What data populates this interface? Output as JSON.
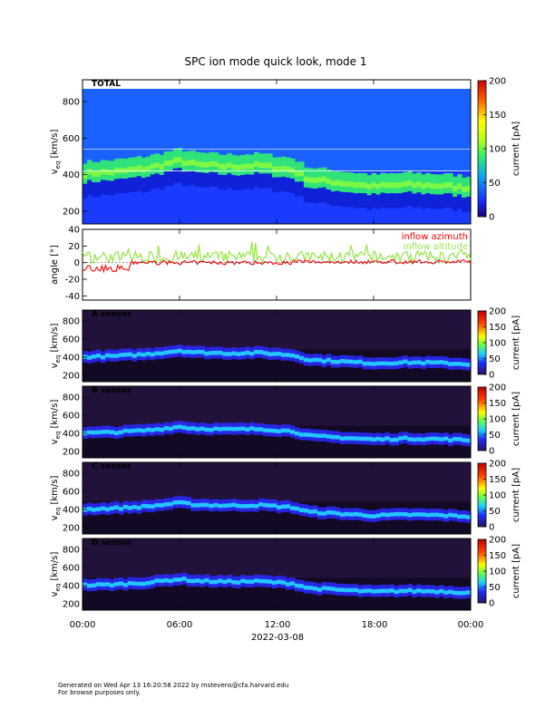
{
  "chart_data": {
    "title": "SPC ion mode quick look, mode 1",
    "date_label": "2022-03-08",
    "x_ticks": [
      "00:00",
      "06:00",
      "12:00",
      "18:00",
      "00:00"
    ],
    "x_range_hours": [
      0,
      24
    ],
    "panels": [
      {
        "type": "heatmap",
        "id": "total",
        "label": "TOTAL",
        "ylabel": "v_eq [km/s]",
        "ylabel_main": "v",
        "ylabel_sub": "eq",
        "ylabel_unit": "[km/s]",
        "ylim": [
          130,
          920
        ],
        "yticks": [
          200,
          400,
          600,
          800
        ],
        "colorbar_label": "current [pA]",
        "colorbar_range": [
          0,
          200
        ],
        "colorbar_ticks": [
          0,
          50,
          100,
          150,
          200
        ],
        "peak_speed_kms": [
          [
            0,
            400
          ],
          [
            2,
            410
          ],
          [
            4,
            430
          ],
          [
            6,
            470
          ],
          [
            7,
            450
          ],
          [
            9,
            440
          ],
          [
            11,
            445
          ],
          [
            13,
            420
          ],
          [
            14,
            370
          ],
          [
            16,
            350
          ],
          [
            18,
            330
          ],
          [
            20,
            340
          ],
          [
            22,
            335
          ],
          [
            24,
            320
          ]
        ]
      },
      {
        "type": "line",
        "id": "angle",
        "ylabel": "angle [°]",
        "ylim": [
          -45,
          40
        ],
        "yticks": [
          -40,
          -20,
          0,
          20,
          40
        ],
        "series": [
          {
            "name": "inflow azimuth",
            "color": "#ff0000"
          },
          {
            "name": "inflow altitude",
            "color": "#99e64d"
          }
        ]
      },
      {
        "type": "heatmap",
        "id": "a",
        "label": "A sensor",
        "ylabel_main": "v",
        "ylabel_sub": "eq",
        "ylabel_unit": "[km/s]",
        "ylim": [
          130,
          920
        ],
        "yticks": [
          200,
          400,
          600,
          800
        ],
        "colorbar_label": "current [pA]",
        "colorbar_range": [
          0,
          200
        ],
        "colorbar_ticks": [
          0,
          50,
          100,
          150,
          200
        ]
      },
      {
        "type": "heatmap",
        "id": "b",
        "label": "B sensor",
        "ylabel_main": "v",
        "ylabel_sub": "eq",
        "ylabel_unit": "[km/s]",
        "ylim": [
          130,
          920
        ],
        "yticks": [
          200,
          400,
          600,
          800
        ],
        "colorbar_label": "current [pA]",
        "colorbar_range": [
          0,
          200
        ],
        "colorbar_ticks": [
          0,
          50,
          100,
          150,
          200
        ]
      },
      {
        "type": "heatmap",
        "id": "c",
        "label": "C sensor",
        "ylabel_main": "v",
        "ylabel_sub": "eq",
        "ylabel_unit": "[km/s]",
        "ylim": [
          130,
          920
        ],
        "yticks": [
          200,
          400,
          600,
          800
        ],
        "colorbar_label": "current [pA]",
        "colorbar_range": [
          0,
          200
        ],
        "colorbar_ticks": [
          0,
          50,
          100,
          150,
          200
        ]
      },
      {
        "type": "heatmap",
        "id": "d",
        "label": "D sensor",
        "ylabel_main": "v",
        "ylabel_sub": "eq",
        "ylabel_unit": "[km/s]",
        "ylim": [
          130,
          920
        ],
        "yticks": [
          200,
          400,
          600,
          800
        ],
        "colorbar_label": "current [pA]",
        "colorbar_range": [
          0,
          200
        ],
        "colorbar_ticks": [
          0,
          50,
          100,
          150,
          200
        ]
      }
    ]
  },
  "footer": {
    "line1": "Generated on Wed Apr 13 16:20:58 2022 by mstevens@cfa.harvard.edu",
    "line2": "For browse purposes only."
  }
}
